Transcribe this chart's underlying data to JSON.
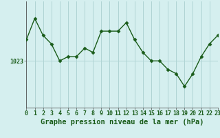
{
  "hours": [
    0,
    1,
    2,
    3,
    4,
    5,
    6,
    7,
    8,
    9,
    10,
    11,
    12,
    13,
    14,
    15,
    16,
    17,
    18,
    19,
    20,
    21,
    22,
    23
  ],
  "pressure": [
    1028,
    1033,
    1029,
    1027,
    1023,
    1024,
    1024,
    1026,
    1025,
    1030,
    1030,
    1030,
    1032,
    1028,
    1025,
    1023,
    1023,
    1021,
    1020,
    1017,
    1020,
    1024,
    1027,
    1029
  ],
  "line_color": "#1a5c1a",
  "marker": "D",
  "marker_size": 2.5,
  "line_width": 1.0,
  "bg_color": "#d5efef",
  "grid_color": "#afd4d4",
  "ylabel_text": "1023",
  "ylabel_value": 1023,
  "xlabel": "Graphe pression niveau de la mer (hPa)",
  "xlabel_fontsize": 7.5,
  "xlabel_bold": true,
  "tick_fontsize": 6,
  "ylim": [
    1012,
    1037
  ],
  "xlim": [
    0,
    23
  ]
}
